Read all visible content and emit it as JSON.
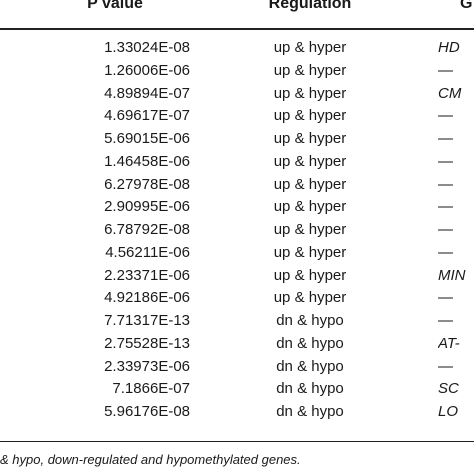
{
  "table": {
    "headers": {
      "pvalue": "P value",
      "regulation": "Regulation",
      "gene": "G"
    },
    "rows": [
      {
        "pvalue": "1.33024E-08",
        "regulation": "up & hyper",
        "gene": "HD"
      },
      {
        "pvalue": "1.26006E-06",
        "regulation": "up & hyper",
        "gene": "—"
      },
      {
        "pvalue": "4.89894E-07",
        "regulation": "up & hyper",
        "gene": "CM"
      },
      {
        "pvalue": "4.69617E-07",
        "regulation": "up & hyper",
        "gene": "—"
      },
      {
        "pvalue": "5.69015E-06",
        "regulation": "up & hyper",
        "gene": "—"
      },
      {
        "pvalue": "1.46458E-06",
        "regulation": "up & hyper",
        "gene": "—"
      },
      {
        "pvalue": "6.27978E-08",
        "regulation": "up & hyper",
        "gene": "—"
      },
      {
        "pvalue": "2.90995E-06",
        "regulation": "up & hyper",
        "gene": "—"
      },
      {
        "pvalue": "6.78792E-08",
        "regulation": "up & hyper",
        "gene": "—"
      },
      {
        "pvalue": "4.56211E-06",
        "regulation": "up & hyper",
        "gene": "—"
      },
      {
        "pvalue": "2.23371E-06",
        "regulation": "up & hyper",
        "gene": "MIN"
      },
      {
        "pvalue": "4.92186E-06",
        "regulation": "up & hyper",
        "gene": "—"
      },
      {
        "pvalue": "7.71317E-13",
        "regulation": "dn & hypo",
        "gene": "—"
      },
      {
        "pvalue": "2.75528E-13",
        "regulation": "dn & hypo",
        "gene": "AT-"
      },
      {
        "pvalue": "2.33973E-06",
        "regulation": "dn & hypo",
        "gene": "—"
      },
      {
        "pvalue": "7.1866E-07",
        "regulation": "dn & hypo",
        "gene": "SC"
      },
      {
        "pvalue": "5.96176E-08",
        "regulation": "dn & hypo",
        "gene": "LO"
      }
    ]
  },
  "footnote": "& hypo, down-regulated and hypomethylated genes."
}
